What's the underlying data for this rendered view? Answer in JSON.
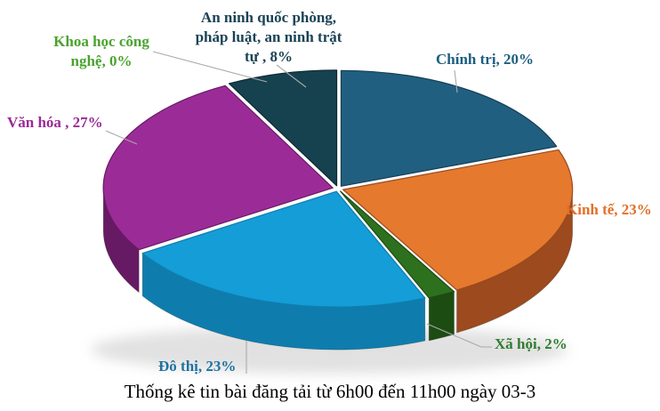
{
  "chart_data": {
    "type": "pie",
    "style": "3d-exploded",
    "title": "Thống kê tin bài đăng tải từ 6h00 đến 11h00 ngày 03-3",
    "legend_position": "none",
    "label_format": "category, percent",
    "slices": [
      {
        "key": "chinh-tri",
        "label": "Chính trị",
        "pct": 20,
        "display": "Chính trị, 20%",
        "color": "#215f80",
        "side_color": "#153f56",
        "label_color": "#1d5e80"
      },
      {
        "key": "kinh-te",
        "label": "Kinh tế",
        "pct": 23,
        "display": "Kinh tế, 23%",
        "color": "#e5792e",
        "side_color": "#9c4a1e",
        "label_color": "#e2702a"
      },
      {
        "key": "xa-hoi",
        "label": "Xã hội",
        "pct": 2,
        "display": "Xã hội, 2%",
        "color": "#2d701e",
        "side_color": "#1c4c12",
        "label_color": "#2f7d2f"
      },
      {
        "key": "do-thi",
        "label": "Đô thị",
        "pct": 23,
        "display": "Đô thị, 23%",
        "color": "#149dd7",
        "side_color": "#0e7dae",
        "label_color": "#2071a0"
      },
      {
        "key": "van-hoa",
        "label": "Văn hóa",
        "pct": 27,
        "display": "Văn hóa , 27%",
        "color": "#9b2c97",
        "side_color": "#671a64",
        "label_color": "#9a2b96"
      },
      {
        "key": "khoa-hoc-cong-nghe",
        "label": "Khoa học công nghệ",
        "pct": 0,
        "display": "Khoa học công\nnghệ, 0%",
        "color": "#4aa32e",
        "side_color": "#35791f",
        "label_color": "#4aa32e"
      },
      {
        "key": "an-ninh",
        "label": "An ninh quốc phòng, pháp luật, an ninh trật tự",
        "pct": 8,
        "display": "An ninh quốc phòng,\npháp luật, an ninh trật\ntự , 8%",
        "color": "#16414f",
        "side_color": "#0c2831",
        "label_color": "#1b4356"
      }
    ]
  }
}
